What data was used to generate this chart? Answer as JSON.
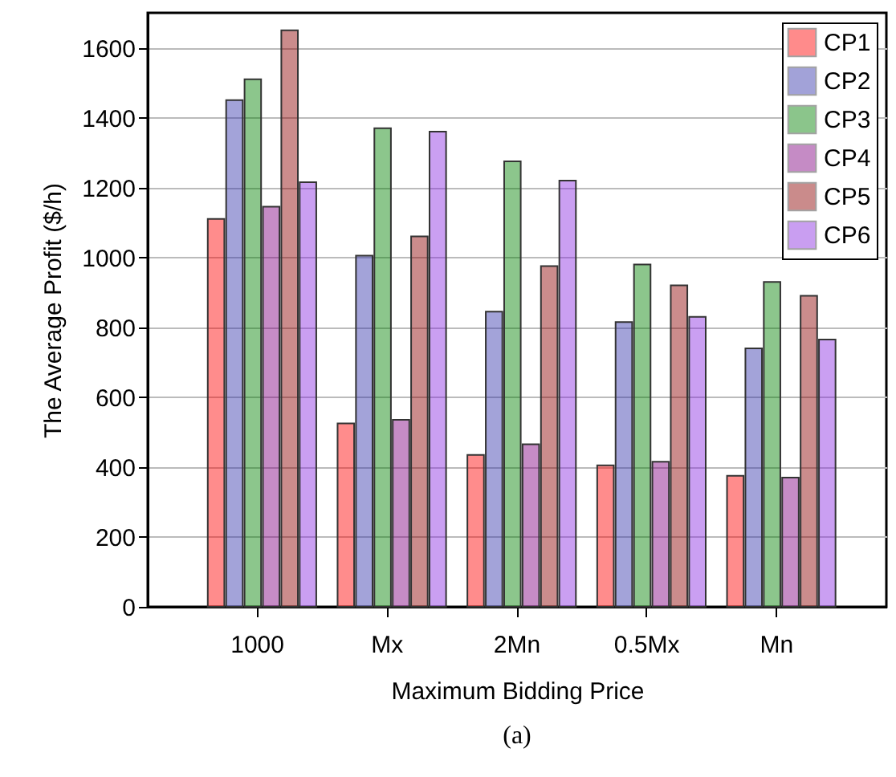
{
  "chart_data": {
    "type": "bar",
    "xlabel": "Maximum Bidding Price",
    "ylabel": "The Average Profit ($/h)",
    "annotations": [
      "(a)"
    ],
    "categories": [
      "1000",
      "Mx",
      "2Mn",
      "0.5Mx",
      "Mn"
    ],
    "series": [
      {
        "name": "CP1",
        "color": "#ff0000",
        "values": [
          1110,
          525,
          435,
          405,
          375
        ]
      },
      {
        "name": "CP2",
        "color": "#3333aa",
        "values": [
          1450,
          1005,
          845,
          815,
          740
        ]
      },
      {
        "name": "CP3",
        "color": "#008000",
        "values": [
          1510,
          1370,
          1275,
          980,
          930
        ]
      },
      {
        "name": "CP4",
        "color": "#800080",
        "values": [
          1145,
          535,
          465,
          415,
          370
        ]
      },
      {
        "name": "CP5",
        "color": "#8b0000",
        "values": [
          1650,
          1060,
          975,
          920,
          890
        ]
      },
      {
        "name": "CP6",
        "color": "#8a2be2",
        "values": [
          1215,
          1360,
          1220,
          830,
          765
        ]
      }
    ],
    "ylim": [
      0,
      1700
    ],
    "yticks": [
      0,
      200,
      400,
      600,
      800,
      1000,
      1200,
      1400,
      1600
    ],
    "grid": "y",
    "legend": "top right"
  }
}
